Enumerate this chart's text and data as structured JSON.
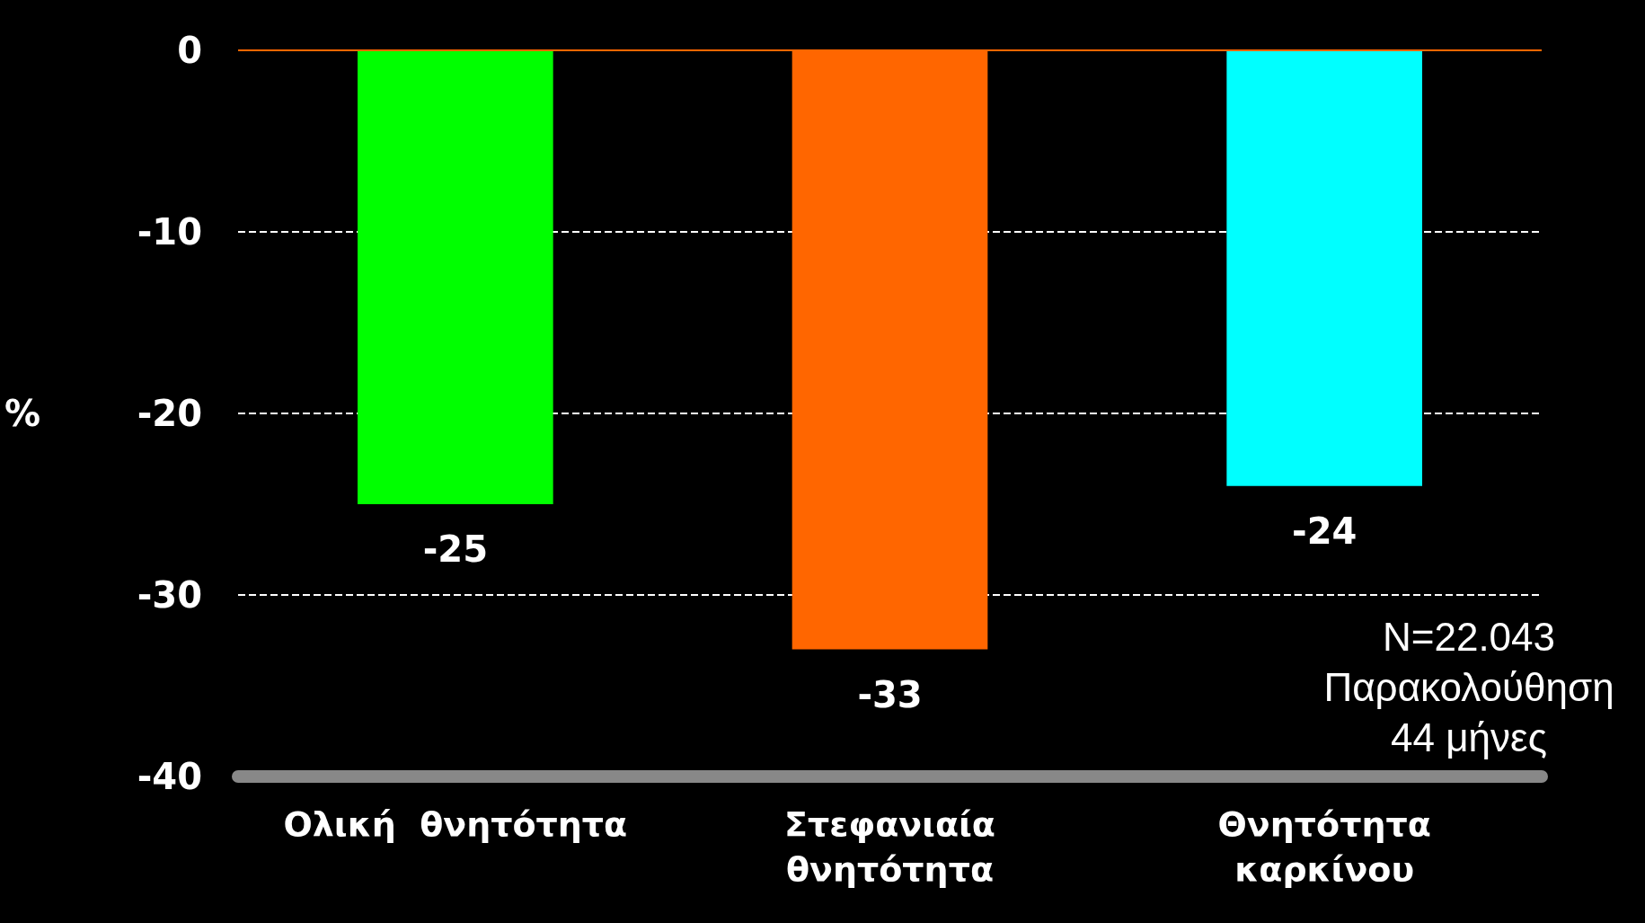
{
  "chart_data": {
    "type": "bar",
    "categories": [
      "Ολική  θνητότητα",
      "Στεφανιαία\nθνητότητα",
      "Θνητότητα\nκαρκίνου"
    ],
    "values": [
      -25,
      -33,
      -24
    ],
    "colors": [
      "#00ff00",
      "#ff6600",
      "#00ffff"
    ],
    "ylabel": "%",
    "ylim": [
      -40,
      0
    ],
    "yticks": [
      0,
      -10,
      -20,
      -30,
      -40
    ],
    "grid": "y",
    "data_labels": true,
    "ref_lines": [
      {
        "axis": "y",
        "value": 0,
        "color": "#ff6600"
      }
    ],
    "annotations": [
      "N=22.043\nΠαρακολούθηση\n44 μήνες"
    ]
  }
}
